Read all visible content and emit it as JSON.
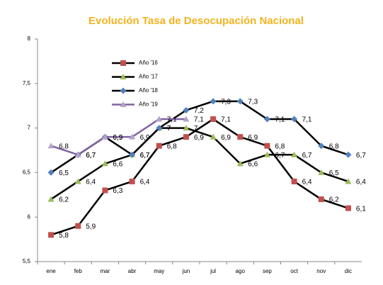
{
  "chart_data": {
    "type": "line",
    "title": "Evolución Tasa de Desocupación Nacional",
    "categories": [
      "ene",
      "feb",
      "mar",
      "abr",
      "may",
      "jun",
      "jul",
      "ago",
      "sep",
      "oct",
      "nov",
      "dic"
    ],
    "ylim": [
      5.5,
      8
    ],
    "yticks": [
      {
        "value": 5.5,
        "label": "5,5"
      },
      6,
      {
        "value": 6.5,
        "label": "6,5"
      },
      7,
      {
        "value": 7.5,
        "label": "7,5"
      },
      8
    ],
    "grid": false,
    "series": [
      {
        "name": "Año '16",
        "color": "#c0504d",
        "line_color": "#000000",
        "marker": "square",
        "values": [
          5.8,
          5.9,
          6.3,
          6.4,
          6.8,
          6.9,
          7.1,
          6.9,
          6.8,
          6.4,
          6.2,
          6.1
        ],
        "value_labels": [
          "5,8",
          "5,9",
          "6,3",
          "6,4",
          "6,8",
          "6,9",
          "7,1",
          "6,9",
          "6,8",
          "6,4",
          "6,2",
          "6,1"
        ]
      },
      {
        "name": "Año '17",
        "color": "#9bbb59",
        "line_color": "#000000",
        "marker": "triangle",
        "values": [
          6.2,
          6.4,
          6.6,
          6.7,
          7.0,
          7.0,
          6.9,
          6.6,
          6.7,
          6.7,
          6.5,
          6.4
        ],
        "value_labels": [
          "6,2",
          "6,4",
          "6,6",
          "6,7",
          "7",
          "7",
          "6,9",
          "6,6",
          "6,7",
          "6,7",
          "6,5",
          "6,4"
        ]
      },
      {
        "name": "Año '18",
        "color": "#4f81bd",
        "line_color": "#000000",
        "marker": "diamond",
        "values": [
          6.5,
          6.7,
          6.9,
          6.7,
          7.0,
          7.2,
          7.3,
          7.3,
          7.1,
          7.1,
          6.8,
          6.7
        ],
        "value_labels": [
          "6,5",
          "6,7",
          "6,9",
          "6,7",
          "7",
          "7,2",
          "7,3",
          "7,3",
          "7,1",
          "7,1",
          "6,8",
          "6,7"
        ]
      },
      {
        "name": "Año '19",
        "color": "#b3a2c7",
        "line_color": "#8064a2",
        "marker": "triangle",
        "values": [
          6.8,
          6.7,
          6.9,
          6.9,
          7.1,
          7.1,
          null,
          null,
          null,
          null,
          null,
          null
        ],
        "value_labels": [
          "6,8",
          "6,7",
          "6,9",
          "6,9",
          "7,1",
          "7,1",
          null,
          null,
          null,
          null,
          null,
          null
        ]
      }
    ]
  }
}
